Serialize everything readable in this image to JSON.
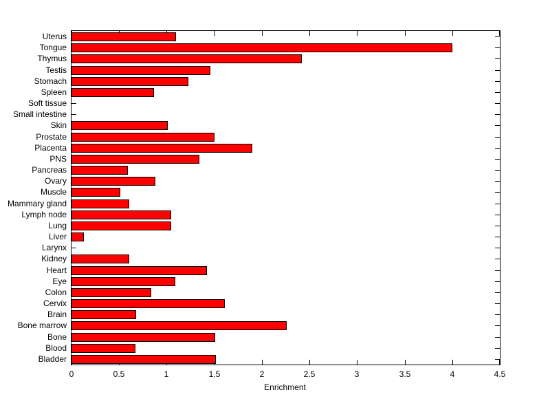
{
  "figure": {
    "background": "#FFFFFF",
    "axis_color": "#000000",
    "text_color": "#000000"
  },
  "chart_data": {
    "type": "bar",
    "orientation": "horizontal",
    "title": "",
    "xlabel": "Enrichment",
    "ylabel": "",
    "xlim": [
      0,
      4.5
    ],
    "xticks": [
      0,
      0.5,
      1,
      1.5,
      2,
      2.5,
      3,
      3.5,
      4,
      4.5
    ],
    "xtick_labels": [
      "0",
      "0.5",
      "1",
      "1.5",
      "2",
      "2.5",
      "3",
      "3.5",
      "4",
      "4.5"
    ],
    "grid": false,
    "legend": null,
    "bar_color": "#FF0000",
    "bar_edge_color": "#000000",
    "categories": [
      "Uterus",
      "Tongue",
      "Thymus",
      "Testis",
      "Stomach",
      "Spleen",
      "Soft tissue",
      "Small intestine",
      "Skin",
      "Prostate",
      "Placenta",
      "PNS",
      "Pancreas",
      "Ovary",
      "Muscle",
      "Mammary gland",
      "Lymph node",
      "Lung",
      "Liver",
      "Larynx",
      "Kidney",
      "Heart",
      "Eye",
      "Colon",
      "Cervix",
      "Brain",
      "Bone marrow",
      "Bone",
      "Blood",
      "Bladder"
    ],
    "values": [
      1.1,
      4.0,
      2.42,
      1.46,
      1.23,
      0.87,
      0,
      0,
      1.01,
      1.5,
      1.9,
      1.34,
      0.59,
      0.88,
      0.51,
      0.61,
      1.05,
      1.05,
      0.13,
      0,
      0.61,
      1.42,
      1.09,
      0.84,
      1.61,
      0.68,
      2.26,
      1.51,
      0.67,
      1.52
    ]
  }
}
